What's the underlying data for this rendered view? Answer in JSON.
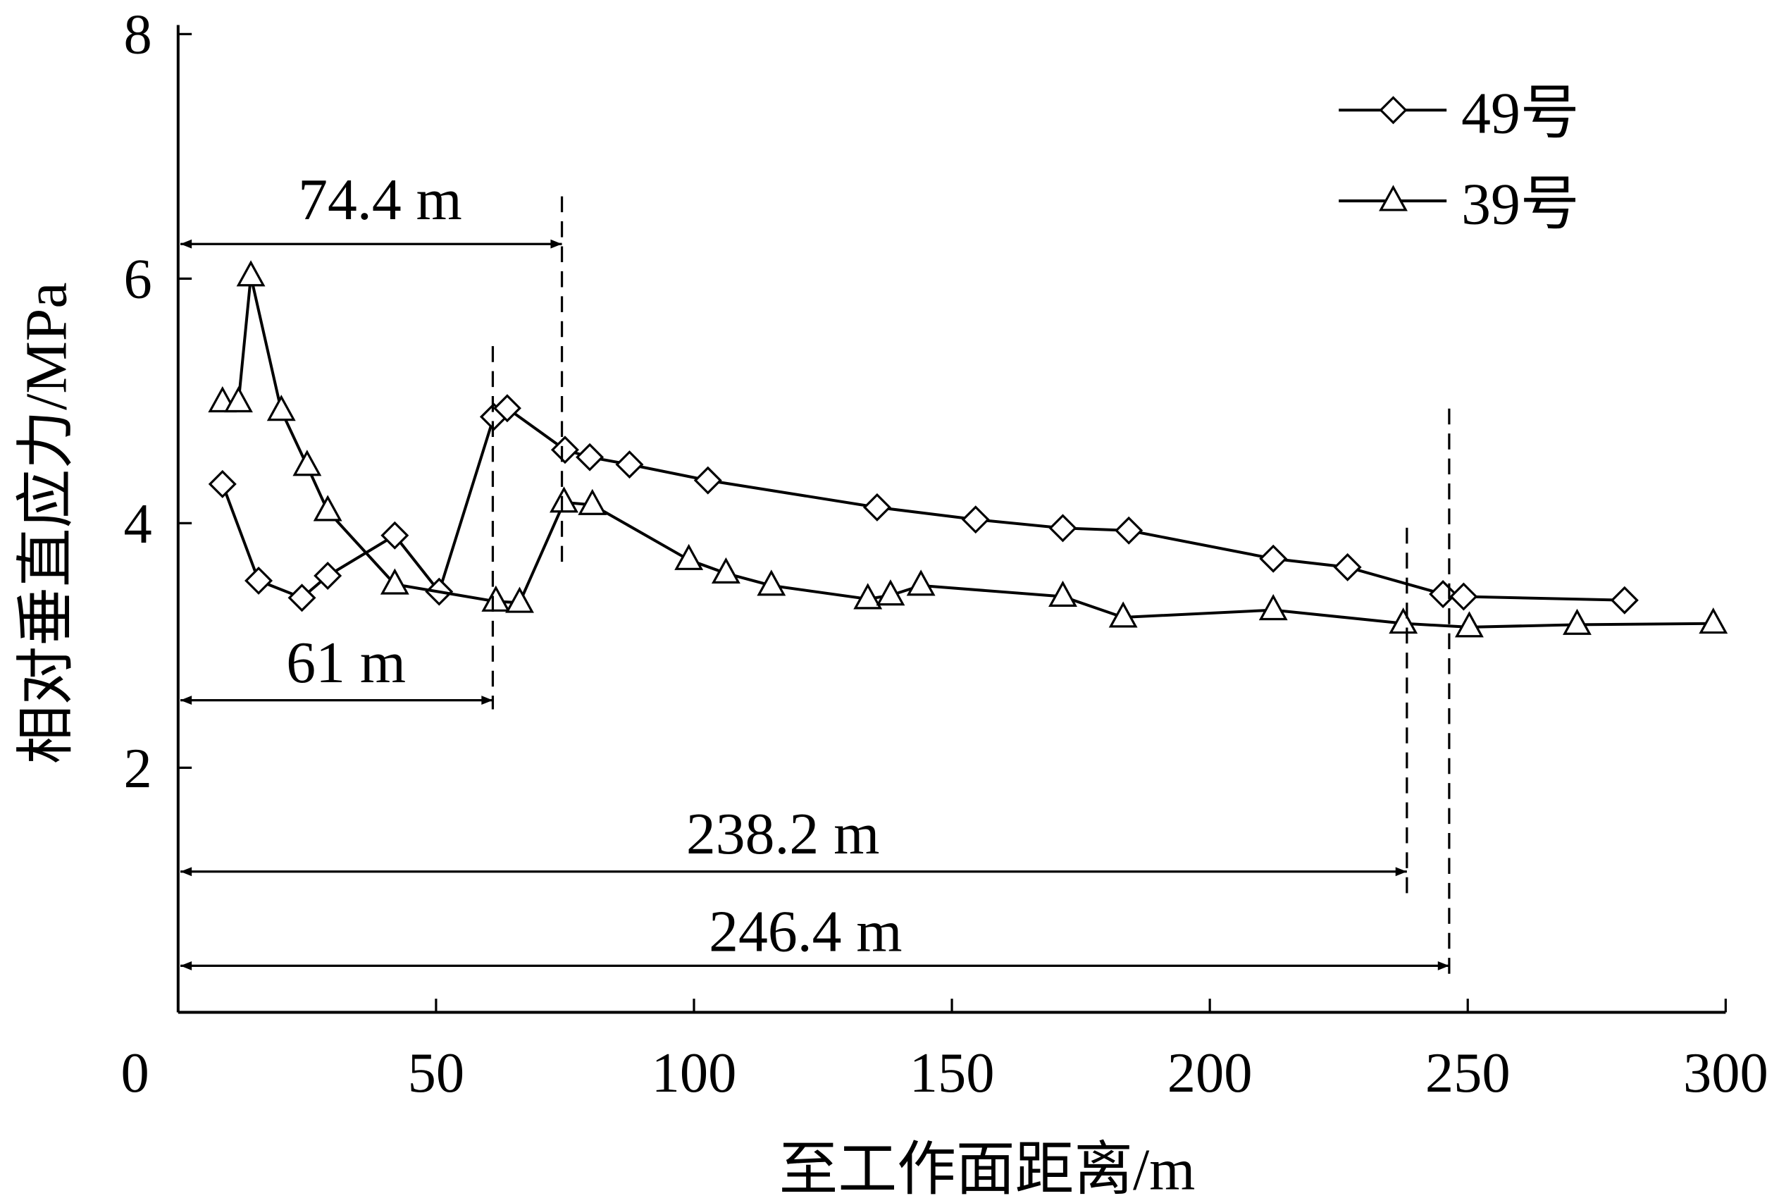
{
  "chart_data": {
    "type": "line",
    "xlabel": "至工作面距离/m",
    "ylabel": "相对垂直应力/MPa",
    "xlim": [
      0,
      300
    ],
    "xticks": [
      0,
      50,
      100,
      150,
      200,
      250,
      300
    ],
    "ylim": [
      0,
      8
    ],
    "yticks": [
      2,
      4,
      6,
      8
    ],
    "legend": "upper right",
    "series": [
      {
        "name": "49号",
        "color": "#000000",
        "marker": "diamond",
        "x": [
          8.6,
          15.6,
          24,
          29,
          42,
          50.6,
          61.2,
          63.8,
          75,
          79.8,
          87.5,
          102.7,
          135.5,
          154.6,
          171.5,
          184.3,
          212.3,
          226.7,
          245.2,
          249.2,
          280.4
        ],
        "values": [
          4.32,
          3.53,
          3.39,
          3.57,
          3.9,
          3.44,
          4.87,
          4.94,
          4.6,
          4.54,
          4.48,
          4.35,
          4.13,
          4.03,
          3.96,
          3.94,
          3.71,
          3.64,
          3.42,
          3.4,
          3.37
        ]
      },
      {
        "name": "39号",
        "color": "#000000",
        "marker": "triangle",
        "x": [
          8.6,
          11.7,
          14.1,
          20,
          25,
          29,
          42,
          61.6,
          66.2,
          74.8,
          80.3,
          99,
          106.2,
          115,
          133.7,
          138.1,
          144,
          171.5,
          183.2,
          212.3,
          237.5,
          250.3,
          271.2,
          297.6
        ],
        "values": [
          4.99,
          4.99,
          6.02,
          4.92,
          4.47,
          4.1,
          3.5,
          3.36,
          3.35,
          4.17,
          4.15,
          3.7,
          3.59,
          3.49,
          3.38,
          3.41,
          3.49,
          3.4,
          3.23,
          3.29,
          3.18,
          3.15,
          3.17,
          3.18
        ]
      }
    ],
    "annotations": [
      {
        "text": "74.4 m",
        "x": 74.4
      },
      {
        "text": "61 m",
        "x": 61
      },
      {
        "text": "238.2 m",
        "x": 238.2
      },
      {
        "text": "246.4 m",
        "x": 246.4
      }
    ]
  }
}
